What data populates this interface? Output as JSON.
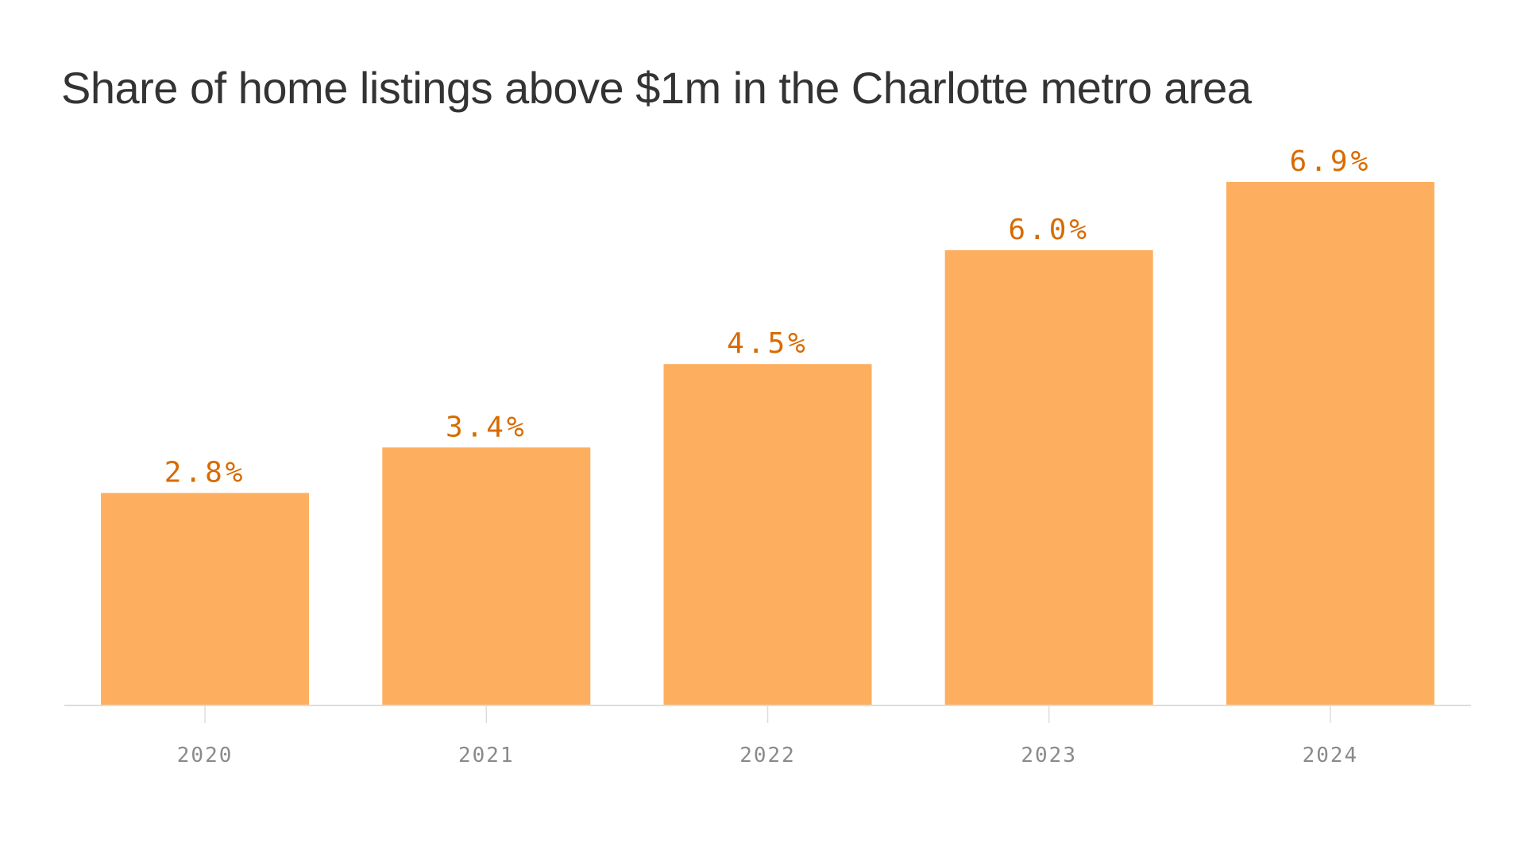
{
  "chart_data": {
    "type": "bar",
    "title": "Share of home listings above $1m in the Charlotte metro area",
    "xlabel": "",
    "ylabel": "",
    "categories": [
      "2020",
      "2021",
      "2022",
      "2023",
      "2024"
    ],
    "values": [
      2.8,
      3.4,
      4.5,
      6.0,
      6.9
    ],
    "value_labels": [
      "2.8%",
      "3.4%",
      "4.5%",
      "6.0%",
      "6.9%"
    ],
    "ylim": [
      0,
      6.9
    ],
    "grid": false,
    "legend": "none",
    "colors": {
      "bar": "#FDAF5F",
      "value_label": "#D86B00",
      "tick_label": "#8A8A8A",
      "axis": "#DDDDDD",
      "title": "#333333"
    }
  }
}
